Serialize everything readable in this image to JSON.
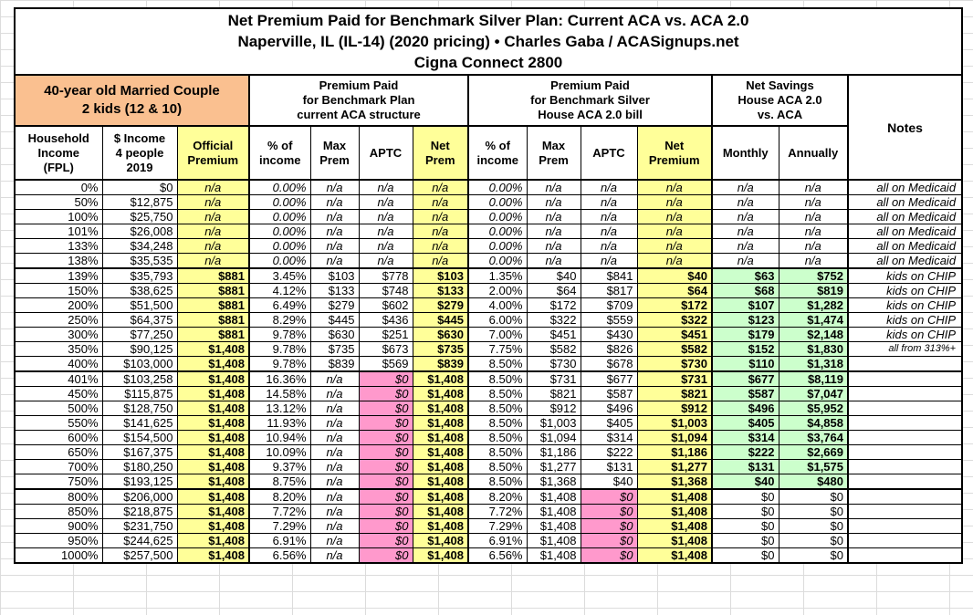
{
  "chart_data": {
    "type": "table",
    "title": [
      "Net Premium Paid for Benchmark Silver Plan: Current ACA vs. ACA 2.0",
      "Naperville, IL (IL-14) (2020 pricing) • Charles Gaba / ACASignups.net",
      "Cigna Connect 2800"
    ],
    "group_headers": {
      "household": "40-year old Married Couple\n2 kids (12 & 10)",
      "current_aca": "Premium Paid\nfor Benchmark Plan\ncurrent ACA structure",
      "house_aca": "Premium Paid\nfor Benchmark Silver\nHouse ACA 2.0 bill",
      "net_savings": "Net Savings\nHouse ACA 2.0\nvs. ACA",
      "notes": "Notes"
    },
    "columns": [
      {
        "label": "Household\nIncome\n(FPL)"
      },
      {
        "label": "$ Income\n4 people\n2019"
      },
      {
        "label": "Official\nPremium",
        "highlight": true
      },
      {
        "label": "% of\nincome"
      },
      {
        "label": "Max\nPrem"
      },
      {
        "label": "APTC"
      },
      {
        "label": "Net\nPrem",
        "highlight": true
      },
      {
        "label": "% of\nincome"
      },
      {
        "label": "Max\nPrem"
      },
      {
        "label": "APTC"
      },
      {
        "label": "Net\nPremium",
        "highlight": true
      },
      {
        "label": "Monthly"
      },
      {
        "label": "Annually"
      }
    ],
    "colors": {
      "household_orange": "#FAC090",
      "highlight_yellow": "#FFFF99",
      "savings_green": "#CCFFCC",
      "zero_pink": "#FF99CC"
    },
    "sections": [
      {
        "rows": [
          {
            "c": [
              "0%",
              "$0",
              "n/a",
              "0.00%",
              "n/a",
              "n/a",
              "n/a",
              "0.00%",
              "n/a",
              "n/a",
              "n/a",
              "n/a",
              "n/a",
              "all on Medicaid"
            ]
          },
          {
            "c": [
              "50%",
              "$12,875",
              "n/a",
              "0.00%",
              "n/a",
              "n/a",
              "n/a",
              "0.00%",
              "n/a",
              "n/a",
              "n/a",
              "n/a",
              "n/a",
              "all on Medicaid"
            ]
          },
          {
            "c": [
              "100%",
              "$25,750",
              "n/a",
              "0.00%",
              "n/a",
              "n/a",
              "n/a",
              "0.00%",
              "n/a",
              "n/a",
              "n/a",
              "n/a",
              "n/a",
              "all on Medicaid"
            ]
          },
          {
            "c": [
              "101%",
              "$26,008",
              "n/a",
              "0.00%",
              "n/a",
              "n/a",
              "n/a",
              "0.00%",
              "n/a",
              "n/a",
              "n/a",
              "n/a",
              "n/a",
              "all on Medicaid"
            ]
          },
          {
            "c": [
              "133%",
              "$34,248",
              "n/a",
              "0.00%",
              "n/a",
              "n/a",
              "n/a",
              "0.00%",
              "n/a",
              "n/a",
              "n/a",
              "n/a",
              "n/a",
              "all on Medicaid"
            ]
          },
          {
            "c": [
              "138%",
              "$35,535",
              "n/a",
              "0.00%",
              "n/a",
              "n/a",
              "n/a",
              "0.00%",
              "n/a",
              "n/a",
              "n/a",
              "n/a",
              "n/a",
              "all on Medicaid"
            ]
          }
        ]
      },
      {
        "rows": [
          {
            "c": [
              "139%",
              "$35,793",
              "$881",
              "3.45%",
              "$103",
              "$778",
              "$103",
              "1.35%",
              "$40",
              "$841",
              "$40",
              "$63",
              "$752",
              "kids on CHIP"
            ]
          },
          {
            "c": [
              "150%",
              "$38,625",
              "$881",
              "4.12%",
              "$133",
              "$748",
              "$133",
              "2.00%",
              "$64",
              "$817",
              "$64",
              "$68",
              "$819",
              "kids on CHIP"
            ]
          },
          {
            "c": [
              "200%",
              "$51,500",
              "$881",
              "6.49%",
              "$279",
              "$602",
              "$279",
              "4.00%",
              "$172",
              "$709",
              "$172",
              "$107",
              "$1,282",
              "kids on CHIP"
            ]
          },
          {
            "c": [
              "250%",
              "$64,375",
              "$881",
              "8.29%",
              "$445",
              "$436",
              "$445",
              "6.00%",
              "$322",
              "$559",
              "$322",
              "$123",
              "$1,474",
              "kids on CHIP"
            ]
          },
          {
            "c": [
              "300%",
              "$77,250",
              "$881",
              "9.78%",
              "$630",
              "$251",
              "$630",
              "7.00%",
              "$451",
              "$430",
              "$451",
              "$179",
              "$2,148",
              "kids on CHIP"
            ]
          },
          {
            "c": [
              "350%",
              "$90,125",
              "$1,408",
              "9.78%",
              "$735",
              "$673",
              "$735",
              "7.75%",
              "$582",
              "$826",
              "$582",
              "$152",
              "$1,830",
              "all from 313%+"
            ],
            "small": true
          },
          {
            "c": [
              "400%",
              "$103,000",
              "$1,408",
              "9.78%",
              "$839",
              "$569",
              "$839",
              "8.50%",
              "$730",
              "$678",
              "$730",
              "$110",
              "$1,318",
              ""
            ]
          }
        ]
      },
      {
        "rows": [
          {
            "c": [
              "401%",
              "$103,258",
              "$1,408",
              "16.36%",
              "n/a",
              "$0",
              "$1,408",
              "8.50%",
              "$731",
              "$677",
              "$731",
              "$677",
              "$8,119",
              ""
            ]
          },
          {
            "c": [
              "450%",
              "$115,875",
              "$1,408",
              "14.58%",
              "n/a",
              "$0",
              "$1,408",
              "8.50%",
              "$821",
              "$587",
              "$821",
              "$587",
              "$7,047",
              ""
            ]
          },
          {
            "c": [
              "500%",
              "$128,750",
              "$1,408",
              "13.12%",
              "n/a",
              "$0",
              "$1,408",
              "8.50%",
              "$912",
              "$496",
              "$912",
              "$496",
              "$5,952",
              ""
            ]
          },
          {
            "c": [
              "550%",
              "$141,625",
              "$1,408",
              "11.93%",
              "n/a",
              "$0",
              "$1,408",
              "8.50%",
              "$1,003",
              "$405",
              "$1,003",
              "$405",
              "$4,858",
              ""
            ]
          },
          {
            "c": [
              "600%",
              "$154,500",
              "$1,408",
              "10.94%",
              "n/a",
              "$0",
              "$1,408",
              "8.50%",
              "$1,094",
              "$314",
              "$1,094",
              "$314",
              "$3,764",
              ""
            ]
          },
          {
            "c": [
              "650%",
              "$167,375",
              "$1,408",
              "10.09%",
              "n/a",
              "$0",
              "$1,408",
              "8.50%",
              "$1,186",
              "$222",
              "$1,186",
              "$222",
              "$2,669",
              ""
            ]
          },
          {
            "c": [
              "700%",
              "$180,250",
              "$1,408",
              "9.37%",
              "n/a",
              "$0",
              "$1,408",
              "8.50%",
              "$1,277",
              "$131",
              "$1,277",
              "$131",
              "$1,575",
              ""
            ]
          },
          {
            "c": [
              "750%",
              "$193,125",
              "$1,408",
              "8.75%",
              "n/a",
              "$0",
              "$1,408",
              "8.50%",
              "$1,368",
              "$40",
              "$1,368",
              "$40",
              "$480",
              ""
            ]
          }
        ]
      },
      {
        "rows": [
          {
            "c": [
              "800%",
              "$206,000",
              "$1,408",
              "8.20%",
              "n/a",
              "$0",
              "$1,408",
              "8.20%",
              "$1,408",
              "$0",
              "$1,408",
              "$0",
              "$0",
              ""
            ]
          },
          {
            "c": [
              "850%",
              "$218,875",
              "$1,408",
              "7.72%",
              "n/a",
              "$0",
              "$1,408",
              "7.72%",
              "$1,408",
              "$0",
              "$1,408",
              "$0",
              "$0",
              ""
            ]
          },
          {
            "c": [
              "900%",
              "$231,750",
              "$1,408",
              "7.29%",
              "n/a",
              "$0",
              "$1,408",
              "7.29%",
              "$1,408",
              "$0",
              "$1,408",
              "$0",
              "$0",
              ""
            ]
          },
          {
            "c": [
              "950%",
              "$244,625",
              "$1,408",
              "6.91%",
              "n/a",
              "$0",
              "$1,408",
              "6.91%",
              "$1,408",
              "$0",
              "$1,408",
              "$0",
              "$0",
              ""
            ]
          },
          {
            "c": [
              "1000%",
              "$257,500",
              "$1,408",
              "6.56%",
              "n/a",
              "$0",
              "$1,408",
              "6.56%",
              "$1,408",
              "$0",
              "$1,408",
              "$0",
              "$0",
              ""
            ]
          }
        ]
      }
    ]
  }
}
